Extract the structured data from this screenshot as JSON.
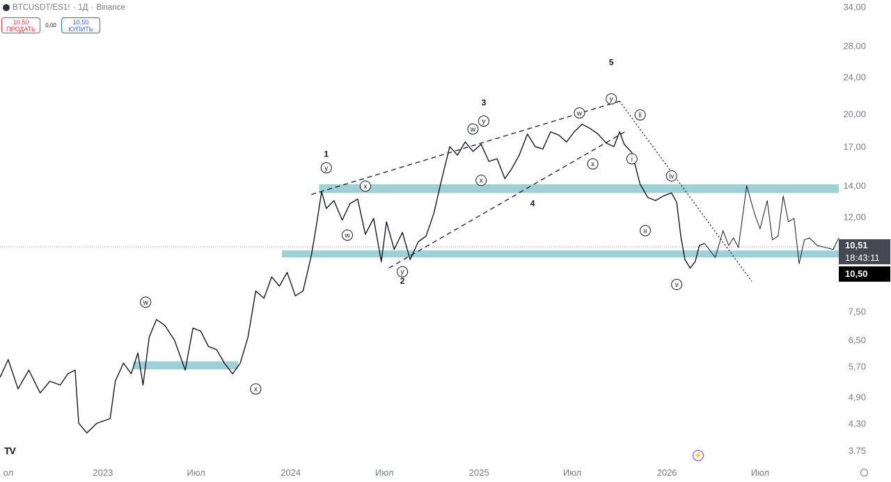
{
  "header": {
    "symbol": "BTCUSDT/ES1!",
    "interval": "1Д",
    "exchange": "Binance",
    "separator": "·"
  },
  "trade": {
    "sell_price": "10,50",
    "sell_label": "ПРОДАТЬ",
    "spread": "0,00",
    "buy_price": "10,50",
    "buy_label": "КУПИТЬ"
  },
  "price_tags": {
    "last": "10,51",
    "countdown": "18:43:11",
    "bid": "10,50"
  },
  "colors": {
    "zone": "#9fd0d6",
    "price_line": "#131722",
    "sell": "#f23645",
    "buy": "#2962ff",
    "tag_dark": "#454854",
    "tag_black": "#000000"
  },
  "icons": {
    "logo": "tradingview-logo-icon",
    "replay": "lightning-icon",
    "settings": "settings-icon"
  },
  "chart_data": {
    "type": "line",
    "scale": "log",
    "y_ticks": [
      "34,00",
      "28,00",
      "24,00",
      "20,00",
      "17,00",
      "14,00",
      "12,00",
      "7,50",
      "6,50",
      "5,70",
      "4,90",
      "4,30",
      "3.75"
    ],
    "y_tick_values": [
      34,
      28,
      24,
      20,
      17,
      14,
      12,
      7.5,
      6.5,
      5.7,
      4.9,
      4.3,
      3.75
    ],
    "x_ticks": [
      "ол",
      "2023",
      "Июл",
      "2024",
      "Июл",
      "2025",
      "Июл",
      "2026",
      "Июл"
    ],
    "x_tick_dates": [
      "2022-07",
      "2023-01",
      "2023-07",
      "2024-01",
      "2024-07",
      "2025-01",
      "2025-07",
      "2026-01",
      "2026-07"
    ],
    "ylim": [
      3.6,
      34.5
    ],
    "xlim": [
      "2022-06-15",
      "2026-12-01"
    ],
    "grid": false,
    "last_price": 10.51,
    "series": [
      {
        "role": "price",
        "x": [
          "2022-06-15",
          "2022-07-01",
          "2022-07-20",
          "2022-08-10",
          "2022-09-01",
          "2022-09-20",
          "2022-10-10",
          "2022-10-25",
          "2022-11-08",
          "2022-11-15",
          "2022-12-01",
          "2022-12-20",
          "2023-01-15",
          "2023-01-25",
          "2023-02-10",
          "2023-02-25",
          "2023-03-10",
          "2023-03-20",
          "2023-04-01",
          "2023-04-15",
          "2023-05-01",
          "2023-05-20",
          "2023-06-10",
          "2023-06-25",
          "2023-07-10",
          "2023-07-25",
          "2023-08-10",
          "2023-08-25",
          "2023-09-10",
          "2023-09-25",
          "2023-10-10",
          "2023-10-25",
          "2023-11-10",
          "2023-11-25",
          "2023-12-10",
          "2023-12-25",
          "2024-01-10",
          "2024-01-25",
          "2024-02-10",
          "2024-02-20",
          "2024-03-01",
          "2024-03-10",
          "2024-03-25",
          "2024-04-10",
          "2024-04-25",
          "2024-05-10",
          "2024-05-25",
          "2024-06-10",
          "2024-06-25",
          "2024-07-05",
          "2024-07-20",
          "2024-08-05",
          "2024-08-20",
          "2024-09-05",
          "2024-09-20",
          "2024-10-05",
          "2024-10-20",
          "2024-11-05",
          "2024-11-20",
          "2024-12-05",
          "2024-12-20",
          "2025-01-05",
          "2025-01-20",
          "2025-02-05",
          "2025-02-20",
          "2025-03-05",
          "2025-03-20",
          "2025-04-05",
          "2025-04-20",
          "2025-05-05",
          "2025-05-20",
          "2025-06-05",
          "2025-06-20",
          "2025-07-05",
          "2025-07-20",
          "2025-08-05",
          "2025-08-20",
          "2025-09-05",
          "2025-09-20",
          "2025-10-01",
          "2025-10-10",
          "2025-10-25",
          "2025-11-10",
          "2025-11-25",
          "2025-12-10",
          "2025-12-25",
          "2026-01-10",
          "2026-01-20",
          "2026-01-28",
          "2026-02-05",
          "2026-02-15",
          "2026-02-25",
          "2026-03-05",
          "2026-03-15"
        ],
        "y": [
          5.4,
          5.9,
          5.1,
          5.6,
          5.0,
          5.3,
          5.2,
          5.5,
          5.6,
          4.3,
          4.1,
          4.3,
          4.4,
          5.3,
          5.8,
          5.5,
          6.1,
          5.2,
          6.6,
          7.2,
          7.0,
          6.5,
          5.6,
          6.9,
          6.8,
          6.3,
          6.2,
          5.8,
          5.5,
          5.8,
          6.6,
          8.3,
          8.0,
          8.9,
          8.5,
          9.1,
          8.1,
          8.3,
          9.9,
          11.5,
          13.6,
          12.5,
          13.0,
          11.8,
          12.8,
          13.1,
          11.0,
          11.9,
          9.6,
          11.7,
          10.2,
          11.1,
          9.7,
          10.6,
          10.9,
          12.2,
          14.4,
          17.0,
          16.3,
          17.4,
          16.6,
          17.2,
          15.8,
          16.0,
          14.5,
          15.2,
          16.3,
          18.1,
          17.0,
          16.8,
          18.3,
          18.0,
          17.4,
          18.3,
          19.0,
          18.6,
          18.1,
          17.3,
          17.0,
          18.3,
          17.2,
          16.5,
          14.1,
          13.2,
          13.0,
          13.3,
          13.5,
          12.9,
          10.9,
          9.7,
          9.3,
          9.6,
          10.4,
          10.51
        ]
      },
      {
        "role": "projection",
        "x": [
          "2026-03-15",
          "2026-04-05",
          "2026-04-20",
          "2026-05-01",
          "2026-05-10",
          "2026-05-20",
          "2026-06-05",
          "2026-06-20",
          "2026-07-01",
          "2026-07-15",
          "2026-07-25",
          "2026-08-05",
          "2026-08-15",
          "2026-08-25",
          "2026-09-05",
          "2026-09-15",
          "2026-09-25",
          "2026-10-05",
          "2026-10-20",
          "2026-11-05",
          "2026-11-20",
          "2026-12-01"
        ],
        "y": [
          10.51,
          9.8,
          11.2,
          10.4,
          10.8,
          10.3,
          14.0,
          12.2,
          11.3,
          13.0,
          10.7,
          10.9,
          13.3,
          11.7,
          11.9,
          9.5,
          10.7,
          10.8,
          10.4,
          10.3,
          10.2,
          10.8
        ]
      }
    ],
    "zones": [
      {
        "x0": "2023-03-01",
        "x1": "2023-09-20",
        "y0": 5.62,
        "y1": 5.85
      },
      {
        "x0": "2024-02-25",
        "x1": "2026-12-01",
        "y0": 13.5,
        "y1": 14.1
      },
      {
        "x0": "2023-12-15",
        "x1": "2026-12-01",
        "y0": 9.8,
        "y1": 10.15
      }
    ],
    "trend_lines": [
      {
        "style": "dashed",
        "x0": "2024-02-10",
        "y0": 13.4,
        "x1": "2025-10-01",
        "y1": 21.3
      },
      {
        "style": "dashed",
        "x0": "2024-07-10",
        "y0": 9.3,
        "x1": "2025-10-15",
        "y1": 18.4
      },
      {
        "style": "dotted",
        "x0": "2025-10-01",
        "y0": 21.3,
        "x1": "2026-06-15",
        "y1": 8.7
      }
    ],
    "annotations": [
      {
        "text": "1",
        "x": "2024-03-10",
        "y": 16.4,
        "circled": false
      },
      {
        "text": "2",
        "x": "2024-08-05",
        "y": 8.73,
        "circled": false
      },
      {
        "text": "3",
        "x": "2025-01-10",
        "y": 21.2,
        "circled": false
      },
      {
        "text": "4",
        "x": "2025-04-15",
        "y": 12.85,
        "circled": false
      },
      {
        "text": "5",
        "x": "2025-09-15",
        "y": 25.9,
        "circled": false
      },
      {
        "text": "y",
        "x": "2024-03-10",
        "y": 15.3,
        "circled": true
      },
      {
        "text": "x",
        "x": "2024-05-25",
        "y": 13.97,
        "circled": true
      },
      {
        "text": "w",
        "x": "2024-04-20",
        "y": 10.95,
        "circled": true
      },
      {
        "text": "y",
        "x": "2024-08-05",
        "y": 9.13,
        "circled": true
      },
      {
        "text": "w",
        "x": "2024-12-20",
        "y": 18.55,
        "circled": true
      },
      {
        "text": "y",
        "x": "2025-01-10",
        "y": 19.3,
        "circled": true
      },
      {
        "text": "x",
        "x": "2025-01-05",
        "y": 14.38,
        "circled": true
      },
      {
        "text": "w",
        "x": "2025-07-15",
        "y": 20.1,
        "circled": true
      },
      {
        "text": "y",
        "x": "2025-09-15",
        "y": 21.55,
        "circled": true
      },
      {
        "text": "x",
        "x": "2025-08-10",
        "y": 15.6,
        "circled": true
      },
      {
        "text": "ii",
        "x": "2025-11-10",
        "y": 19.9,
        "circled": true
      },
      {
        "text": "i",
        "x": "2025-10-25",
        "y": 16.0,
        "circled": true
      },
      {
        "text": "iv",
        "x": "2026-01-10",
        "y": 14.7,
        "circled": true
      },
      {
        "text": "iii",
        "x": "2025-11-20",
        "y": 11.2,
        "circled": true
      },
      {
        "text": "v",
        "x": "2026-01-20",
        "y": 8.57,
        "circled": true
      },
      {
        "text": "w",
        "x": "2023-03-25",
        "y": 7.85,
        "circled": true
      },
      {
        "text": "x",
        "x": "2023-10-25",
        "y": 5.1,
        "circled": true
      }
    ]
  }
}
